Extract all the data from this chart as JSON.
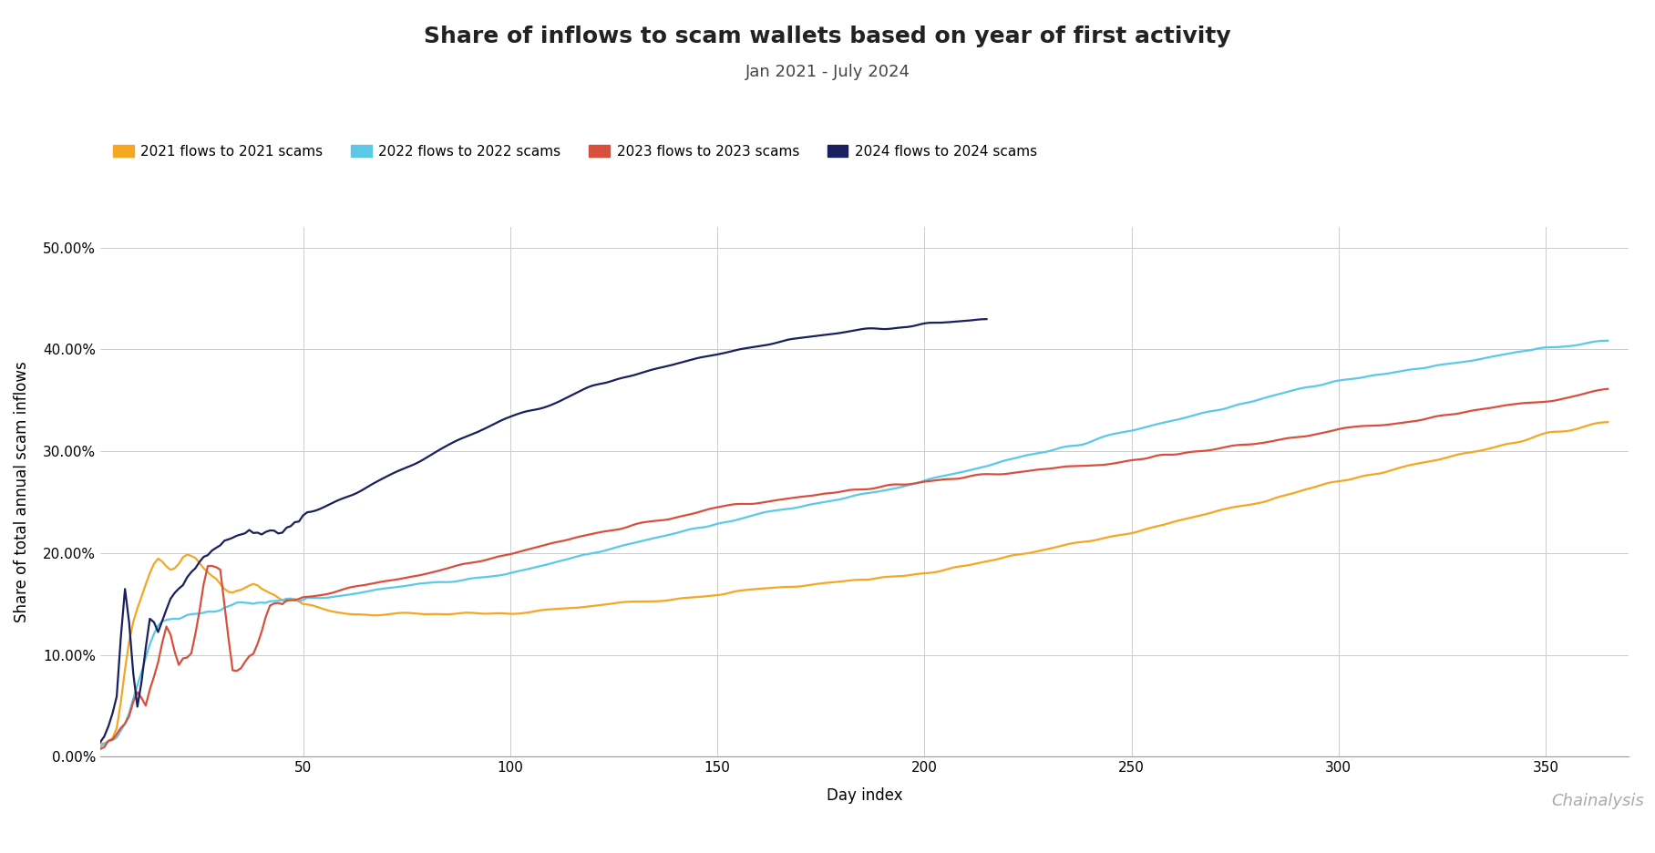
{
  "title": "Share of inflows to scam wallets based on year of first activity",
  "subtitle": "Jan 2021 - July 2024",
  "xlabel": "Day index",
  "ylabel": "Share of total annual scam inflows",
  "xlim": [
    1,
    370
  ],
  "ylim": [
    0.0,
    0.52
  ],
  "yticks": [
    0.0,
    0.1,
    0.2,
    0.3,
    0.4,
    0.5
  ],
  "ytick_labels": [
    "0.00%",
    "10.00%",
    "20.00%",
    "30.00%",
    "40.00%",
    "50.00%"
  ],
  "xticks": [
    50,
    100,
    150,
    200,
    250,
    300,
    350
  ],
  "series": [
    {
      "label": "2021 flows to 2021 scams",
      "color": "#F5A623",
      "linewidth": 1.6
    },
    {
      "label": "2022 flows to 2022 scams",
      "color": "#5BC8E8",
      "linewidth": 1.6
    },
    {
      "label": "2023 flows to 2023 scams",
      "color": "#D94F3D",
      "linewidth": 1.6
    },
    {
      "label": "2024 flows to 2024 scams",
      "color": "#1A1F5E",
      "linewidth": 1.6
    }
  ],
  "background_color": "#ffffff",
  "grid_color": "#cccccc",
  "title_fontsize": 18,
  "subtitle_fontsize": 13,
  "label_fontsize": 12,
  "tick_fontsize": 11,
  "legend_fontsize": 11,
  "chainalysis_text": "Chainalysis",
  "chainalysis_color": "#aaaaaa",
  "chainalysis_fontsize": 13
}
